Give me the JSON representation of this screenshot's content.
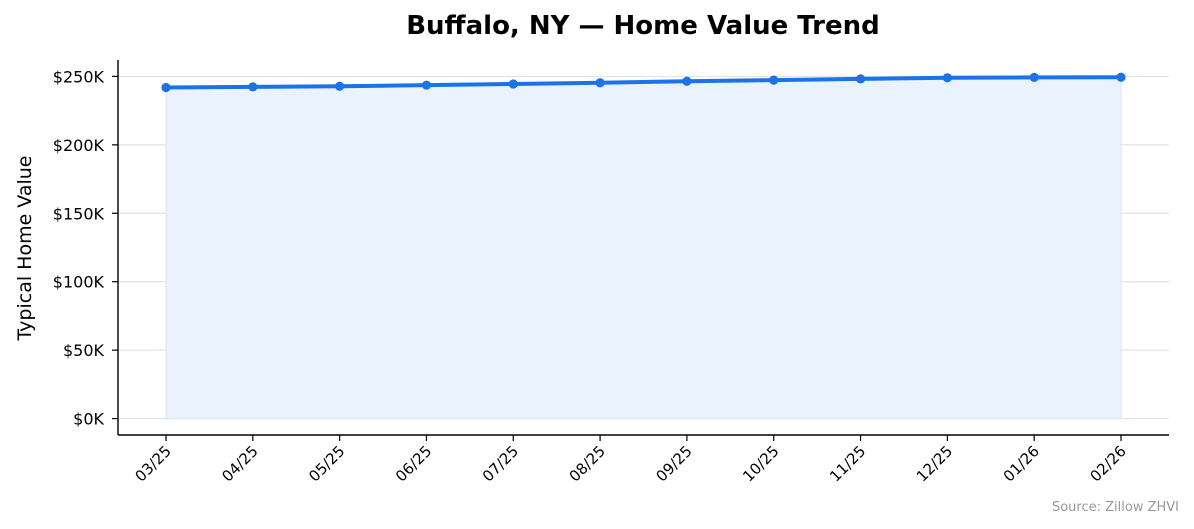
{
  "chart_data": {
    "type": "area",
    "title": "Buffalo, NY — Home Value Trend",
    "xlabel": "",
    "ylabel": "Typical Home Value",
    "categories": [
      "03/25",
      "04/25",
      "05/25",
      "06/25",
      "07/25",
      "08/25",
      "09/25",
      "10/25",
      "11/25",
      "12/25",
      "01/26",
      "02/26"
    ],
    "series": [
      {
        "values": [
          241900,
          242400,
          242800,
          243600,
          244500,
          245400,
          246500,
          247300,
          248200,
          249000,
          249300,
          249400
        ]
      }
    ],
    "ylim": [
      -12000,
      262000
    ],
    "yticks": [
      0,
      50000,
      100000,
      150000,
      200000,
      250000
    ],
    "ytick_labels": [
      "$0K",
      "$50K",
      "$100K",
      "$150K",
      "$200K",
      "$250K"
    ],
    "grid": true,
    "legend": "none",
    "source": "Source: Zillow ZHVI",
    "colors": {
      "line": "#1a73e8",
      "fill": "#eaf2fd",
      "grid": "#e3e3e3",
      "axis": "#000000",
      "source_text": "#999999"
    }
  }
}
